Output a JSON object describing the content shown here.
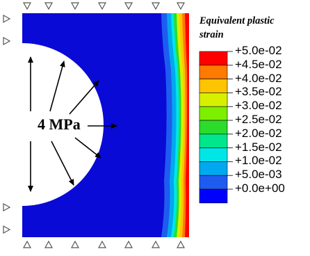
{
  "legend": {
    "title_line1": "Equivalent plastic",
    "title_line2": "strain",
    "levels": [
      {
        "label": "+5.0e-02",
        "color": "#ff0000"
      },
      {
        "label": "+4.5e-02",
        "color": "#ff7a00"
      },
      {
        "label": "+4.0e-02",
        "color": "#ffc400"
      },
      {
        "label": "+3.5e-02",
        "color": "#d7f000"
      },
      {
        "label": "+3.0e-02",
        "color": "#7cf000"
      },
      {
        "label": "+2.5e-02",
        "color": "#2cdc2c"
      },
      {
        "label": "+2.0e-02",
        "color": "#00e68c"
      },
      {
        "label": "+1.5e-02",
        "color": "#00e6e6"
      },
      {
        "label": "+1.0e-02",
        "color": "#00a8f0"
      },
      {
        "label": "+5.0e-03",
        "color": "#1e5cf0"
      },
      {
        "label": "+0.0e+00",
        "color": "#0000ff"
      }
    ]
  },
  "load_label": "4 MPa",
  "colors": {
    "base": "#0a0ad6",
    "hole": "#ffffff",
    "arrows": "#000000",
    "supports": "#555555"
  }
}
